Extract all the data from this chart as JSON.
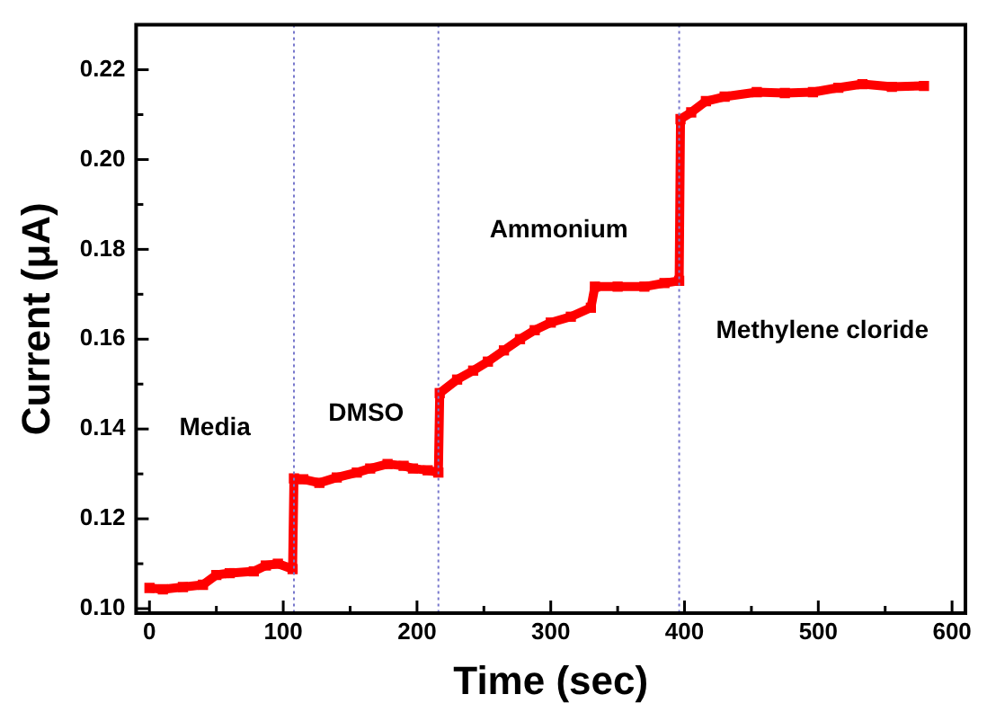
{
  "chart_data": {
    "type": "line",
    "xlabel": "Time (sec)",
    "ylabel": "Current (μA)",
    "x": [
      0,
      10,
      25,
      40,
      50,
      60,
      78,
      87,
      96,
      107,
      108,
      115,
      127,
      140,
      155,
      165,
      178,
      190,
      197,
      208,
      216,
      217,
      230,
      242,
      253,
      265,
      277,
      288,
      300,
      315,
      330,
      333,
      350,
      370,
      385,
      396,
      397,
      405,
      416,
      430,
      454,
      475,
      496,
      515,
      533,
      555,
      579
    ],
    "series": [
      {
        "color": "#ff0000",
        "values": [
          0.1046,
          0.1043,
          0.1048,
          0.1053,
          0.1075,
          0.1079,
          0.1083,
          0.1096,
          0.11,
          0.1088,
          0.129,
          0.1288,
          0.128,
          0.1292,
          0.1303,
          0.1312,
          0.1322,
          0.1318,
          0.1312,
          0.1308,
          0.1303,
          0.148,
          0.151,
          0.153,
          0.155,
          0.1575,
          0.16,
          0.162,
          0.1637,
          0.165,
          0.167,
          0.1717,
          0.1717,
          0.1717,
          0.1725,
          0.173,
          0.209,
          0.2105,
          0.213,
          0.214,
          0.215,
          0.2148,
          0.215,
          0.216,
          0.2168,
          0.2162,
          0.2164
        ]
      }
    ],
    "xlim": [
      -10,
      610
    ],
    "ylim": [
      0.099,
      0.23
    ],
    "xticks": [
      0,
      {
        "value": 50,
        "label": null
      },
      100,
      {
        "value": 150,
        "label": null
      },
      200,
      {
        "value": 250,
        "label": null
      },
      300,
      {
        "value": 350,
        "label": null
      },
      400,
      {
        "value": 450,
        "label": null
      },
      500,
      {
        "value": 550,
        "label": null
      },
      600
    ],
    "yticks": [
      {
        "value": 0.1,
        "label": "0.10"
      },
      {
        "value": 0.11,
        "label": null
      },
      {
        "value": 0.12,
        "label": "0.12"
      },
      {
        "value": 0.13,
        "label": null
      },
      {
        "value": 0.14,
        "label": "0.14"
      },
      {
        "value": 0.15,
        "label": null
      },
      {
        "value": 0.16,
        "label": "0.16"
      },
      {
        "value": 0.17,
        "label": null
      },
      {
        "value": 0.18,
        "label": "0.18"
      },
      {
        "value": 0.19,
        "label": null
      },
      {
        "value": 0.2,
        "label": "0.20"
      },
      {
        "value": 0.21,
        "label": null
      },
      {
        "value": 0.22,
        "label": "0.22"
      }
    ],
    "ref_lines": [
      {
        "axis": "x",
        "value": 108,
        "color": "#7777cc",
        "line_style": "dotted"
      },
      {
        "axis": "x",
        "value": 216,
        "color": "#7777cc",
        "line_style": "dotted"
      },
      {
        "axis": "x",
        "value": 396,
        "color": "#7777cc",
        "line_style": "dotted"
      }
    ],
    "annotations": [
      "Media",
      "DMSO",
      "Ammonium",
      "Methylene cloride"
    ],
    "grid": false,
    "legend": false,
    "marker": "square",
    "line_style": "solid"
  }
}
